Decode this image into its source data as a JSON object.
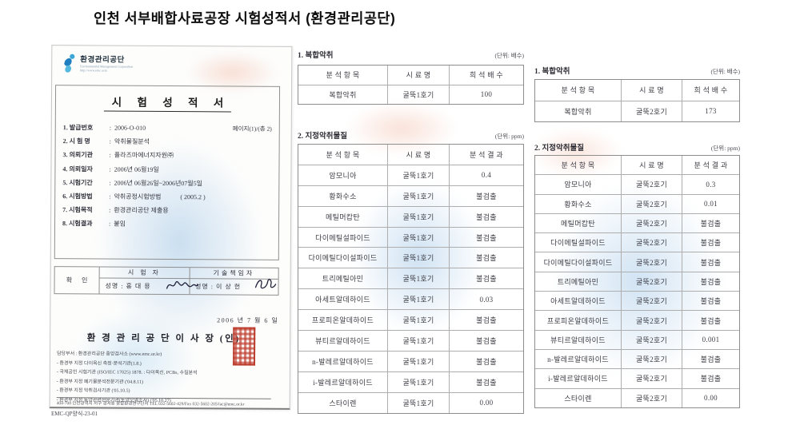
{
  "page_title": "인천 서부배합사료공장 시험성적서  (환경관리공단)",
  "colors": {
    "logo_blue": "#2e86c1",
    "seal_red": "#b5382c",
    "watermark_blue": "#8cb9e1",
    "watermark_pink": "#f2bcaa"
  },
  "certificate": {
    "org_name": "환경관리공단",
    "org_sub1": "Environmental Management Corporation",
    "org_sub2": "http://www.emc.or.kr",
    "doc_title": "시 험 성 적 서",
    "fields": [
      [
        "1. 발급번호",
        ":  2006-O-010",
        "페이지(1)/(총 2)"
      ],
      [
        "2. 시 험 명",
        ":  악취물질분석",
        ""
      ],
      [
        "3. 의뢰기관",
        ":  플라즈마에너지자원㈜",
        ""
      ],
      [
        "4. 의뢰일자",
        ":  2006년 06월19일",
        ""
      ],
      [
        "5. 시험기간",
        ":  2006년 06월26일~2006년07월5일",
        ""
      ],
      [
        "6. 시험방법",
        ":  악취공정시험방법            ( 2005.2 )",
        ""
      ],
      [
        "7. 시험목적",
        ":  환경관리공단 제출용",
        ""
      ],
      [
        "8. 시험결과",
        ":  붙임",
        ""
      ]
    ],
    "confirm": {
      "label": "확  인",
      "tester_title": "시 험 자",
      "tech_title": "기술책임자",
      "tester_name": "성명 :  홍 대 용",
      "tech_name": "성명 :  이 상 헌"
    },
    "issue_date": "2006 년 7 월 6 일",
    "issuer": "환 경 관 리 공 단    이 사 장  (인)",
    "footer_notes": [
      "담당부서 : 환경관리공단 중앙검사소 (www.emc.or.kr)",
      "- 환경부 지정 다이옥신 측정·분석기관(1.8.)",
      "- 국제공인 시험기관 (ISO/IEC 17025) 1878. : 다이옥신, PCBs, 수질분석",
      "- 환경부 지정 폐기물분석전문기관 ('04.8.11)",
      "- 환경부 지정 악취검사기관 ('05.10.5)",
      "- 환경부 지정 토양관련전문기관(토양오염조사) ('05.10.27)"
    ],
    "address": "404-708 인천광역시 서구 경서동 종합환경연구단지 TEL 032-5602-429/Fax 032-5602-205/lac@emc.or.kr",
    "form_code": "EMC-QP양식-23-01"
  },
  "stack1": {
    "odor": {
      "title": "1. 복합악취",
      "unit": "(단위: 배수)",
      "headers": [
        "분 석 항 목",
        "시 료 명",
        "희 석 배 수"
      ],
      "rows": [
        [
          "복합악취",
          "굴뚝1호기",
          "100"
        ]
      ]
    },
    "substances": {
      "title": "2. 지정악취물질",
      "unit": "(단위: ppm)",
      "headers": [
        "분 석 항 목",
        "시 료 명",
        "분 석 결 과"
      ],
      "rows": [
        [
          "암모니아",
          "굴뚝1호기",
          "0.4"
        ],
        [
          "황화수소",
          "굴뚝1호기",
          "불검출"
        ],
        [
          "메틸머캅탄",
          "굴뚝1호기",
          "불검출"
        ],
        [
          "다이메틸설파이드",
          "굴뚝1호기",
          "불검출"
        ],
        [
          "다이메틸다이설파이드",
          "굴뚝1호기",
          "불검출"
        ],
        [
          "트리메틸아민",
          "굴뚝1호기",
          "불검출"
        ],
        [
          "아세트알데하이드",
          "굴뚝1호기",
          "0.03"
        ],
        [
          "프로피온알데하이드",
          "굴뚝1호기",
          "불검출"
        ],
        [
          "뷰티르알데하이드",
          "굴뚝1호기",
          "불검출"
        ],
        [
          "n-발레르알데하이드",
          "굴뚝1호기",
          "불검출"
        ],
        [
          "i-발레르알데하이드",
          "굴뚝1호기",
          "불검출"
        ],
        [
          "스타이렌",
          "굴뚝1호기",
          "0.00"
        ]
      ]
    }
  },
  "stack2": {
    "odor": {
      "title": "1. 복합악취",
      "unit": "(단위: 배수)",
      "headers": [
        "분 석 항 목",
        "시 료 명",
        "희 석 배 수"
      ],
      "rows": [
        [
          "복합악취",
          "굴뚝2호기",
          "173"
        ]
      ]
    },
    "substances": {
      "title": "2. 지정악취물질",
      "unit": "(단위: ppm)",
      "headers": [
        "분 석 항 목",
        "시 료 명",
        "분 석 결 과"
      ],
      "rows": [
        [
          "암모니아",
          "굴뚝2호기",
          "0.3"
        ],
        [
          "황화수소",
          "굴뚝2호기",
          "0.01"
        ],
        [
          "메틸머캅탄",
          "굴뚝2호기",
          "불검출"
        ],
        [
          "다이메틸설파이드",
          "굴뚝2호기",
          "불검출"
        ],
        [
          "다이메틸다이설파이드",
          "굴뚝2호기",
          "불검출"
        ],
        [
          "트리메틸아민",
          "굴뚝2호기",
          "불검출"
        ],
        [
          "아세트알데하이드",
          "굴뚝2호기",
          "불검출"
        ],
        [
          "프로피온알데하이드",
          "굴뚝2호기",
          "불검출"
        ],
        [
          "뷰티르알데하이드",
          "굴뚝2호기",
          "0.001"
        ],
        [
          "n-발레르알데하이드",
          "굴뚝2호기",
          "불검출"
        ],
        [
          "i-발레르알데하이드",
          "굴뚝2호기",
          "불검출"
        ],
        [
          "스타이렌",
          "굴뚝2호기",
          "0.00"
        ]
      ]
    }
  }
}
